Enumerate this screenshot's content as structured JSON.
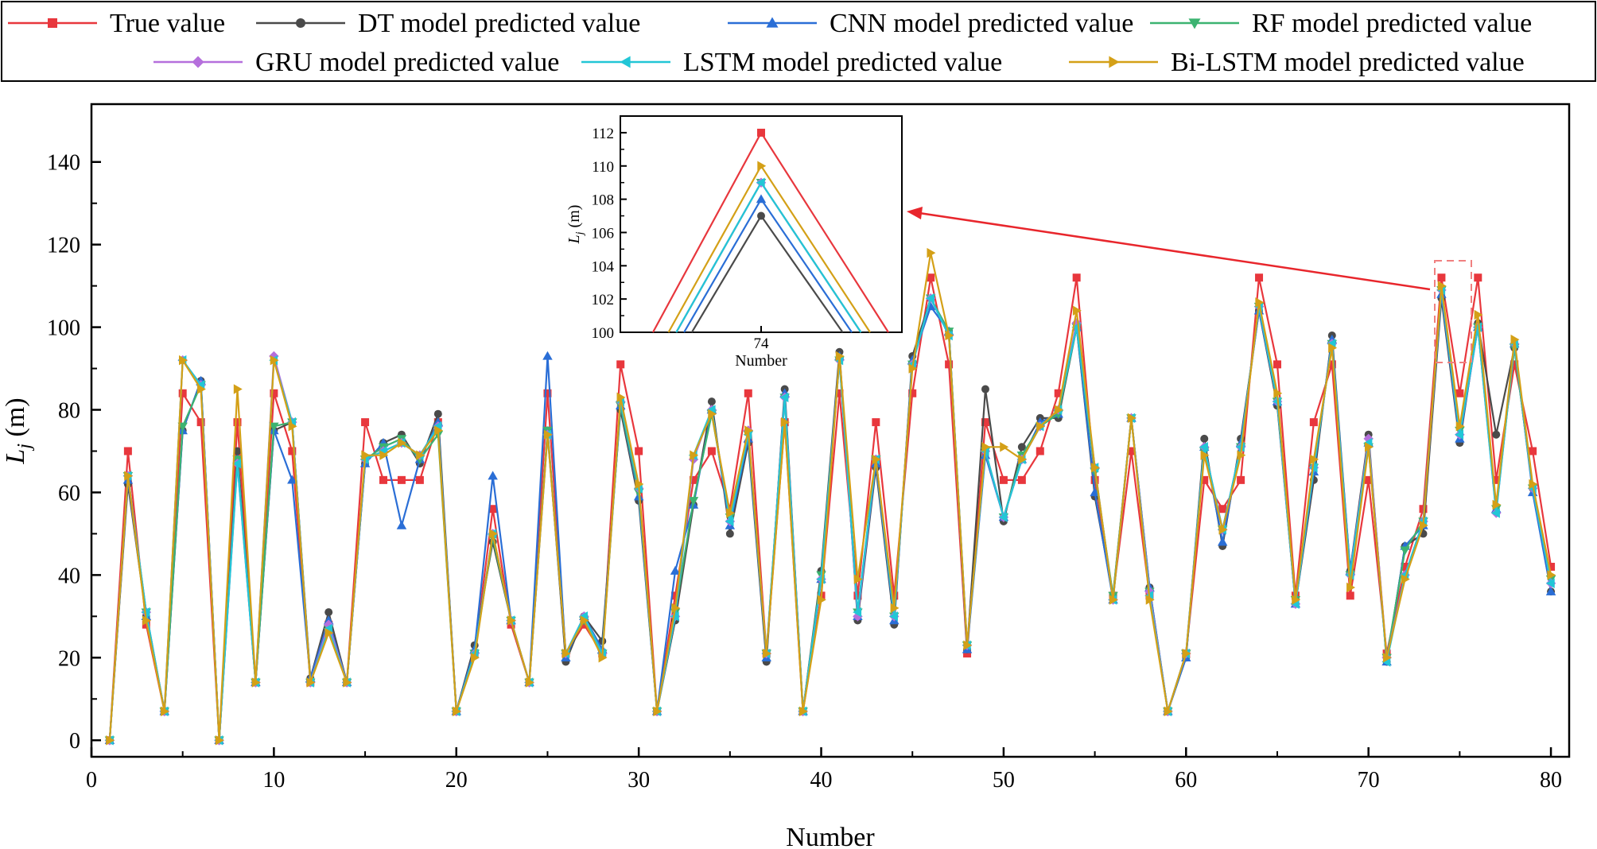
{
  "chart_data": {
    "type": "line",
    "xlabel": "Number",
    "ylabel": "L",
    "ylabel_sub": "j",
    "ylabel_unit": " (m)",
    "xlim": [
      0,
      81
    ],
    "ylim": [
      -4,
      154
    ],
    "xticks": [
      0,
      10,
      20,
      30,
      40,
      50,
      60,
      70,
      80
    ],
    "yticks": [
      0,
      20,
      40,
      60,
      80,
      100,
      120,
      140
    ],
    "x": [
      1,
      2,
      3,
      4,
      5,
      6,
      7,
      8,
      9,
      10,
      11,
      12,
      13,
      14,
      15,
      16,
      17,
      18,
      19,
      20,
      21,
      22,
      23,
      24,
      25,
      26,
      27,
      28,
      29,
      30,
      31,
      32,
      33,
      34,
      35,
      36,
      37,
      38,
      39,
      40,
      41,
      42,
      43,
      44,
      45,
      46,
      47,
      48,
      49,
      50,
      51,
      52,
      53,
      54,
      55,
      56,
      57,
      58,
      59,
      60,
      61,
      62,
      63,
      64,
      65,
      66,
      67,
      68,
      69,
      70,
      71,
      72,
      73,
      74,
      75,
      76,
      77,
      78,
      79,
      80
    ],
    "series": [
      {
        "name": "True value",
        "color": "#e8373d",
        "marker": "square",
        "values": [
          0,
          70,
          28,
          7,
          84,
          77,
          0,
          77,
          14,
          84,
          70,
          14,
          28,
          14,
          77,
          63,
          63,
          63,
          77,
          7,
          21,
          56,
          28,
          14,
          84,
          21,
          28,
          21,
          91,
          70,
          7,
          35,
          63,
          70,
          56,
          84,
          21,
          77,
          7,
          35,
          84,
          35,
          77,
          35,
          84,
          112,
          91,
          21,
          77,
          63,
          63,
          70,
          84,
          112,
          63,
          35,
          70,
          35,
          7,
          21,
          63,
          56,
          63,
          112,
          91,
          35,
          77,
          91,
          35,
          63,
          21,
          42,
          56,
          112,
          84,
          112,
          63,
          91,
          70,
          42
        ]
      },
      {
        "name": "DT model predicted value",
        "color": "#4a4a4a",
        "marker": "circle",
        "values": [
          0,
          62,
          30,
          7,
          75,
          87,
          0,
          70,
          14,
          75,
          77,
          15,
          31,
          14,
          67,
          72,
          74,
          67,
          79,
          7,
          23,
          48,
          29,
          14,
          75,
          19,
          30,
          24,
          80,
          58,
          7,
          29,
          57,
          82,
          50,
          72,
          19,
          85,
          7,
          41,
          94,
          29,
          66,
          28,
          93,
          107,
          99,
          22,
          85,
          53,
          71,
          78,
          78,
          100,
          59,
          35,
          78,
          37,
          7,
          20,
          73,
          47,
          73,
          104,
          81,
          33,
          63,
          98,
          41,
          74,
          19,
          47,
          50,
          107,
          72,
          101,
          74,
          95,
          61,
          36
        ]
      },
      {
        "name": "CNN model predicted value",
        "color": "#2a6ed6",
        "marker": "triangle-up",
        "values": [
          0,
          63,
          30,
          7,
          75,
          87,
          0,
          68,
          14,
          75,
          63,
          15,
          29,
          14,
          67,
          72,
          52,
          68,
          77,
          7,
          22,
          64,
          29,
          14,
          93,
          20,
          30,
          22,
          81,
          59,
          7,
          41,
          57,
          80,
          52,
          73,
          20,
          84,
          7,
          39,
          93,
          30,
          67,
          29,
          92,
          105,
          99,
          22,
          69,
          54,
          68,
          77,
          79,
          100,
          60,
          34,
          78,
          37,
          7,
          20,
          71,
          48,
          72,
          104,
          82,
          33,
          65,
          97,
          41,
          72,
          19,
          47,
          52,
          108,
          73,
          100,
          56,
          96,
          60,
          36
        ]
      },
      {
        "name": "RF model predicted value",
        "color": "#3cb371",
        "marker": "triangle-down",
        "values": [
          0,
          64,
          31,
          7,
          76,
          86,
          0,
          68,
          14,
          76,
          77,
          14,
          27,
          14,
          68,
          71,
          73,
          68,
          74,
          7,
          21,
          49,
          29,
          14,
          75,
          21,
          29,
          21,
          81,
          60,
          7,
          31,
          58,
          79,
          54,
          74,
          21,
          83,
          7,
          40,
          92,
          31,
          68,
          30,
          91,
          107,
          99,
          23,
          70,
          54,
          69,
          76,
          79,
          100,
          65,
          35,
          78,
          36,
          7,
          21,
          70,
          51,
          71,
          105,
          82,
          34,
          66,
          96,
          40,
          71,
          20,
          46,
          53,
          109,
          75,
          100,
          56,
          95,
          61,
          39
        ]
      },
      {
        "name": "GRU model predicted value",
        "color": "#b56fdc",
        "marker": "diamond",
        "values": [
          0,
          64,
          31,
          7,
          92,
          86,
          0,
          67,
          14,
          93,
          77,
          14,
          28,
          14,
          68,
          70,
          72,
          69,
          76,
          7,
          21,
          50,
          29,
          14,
          74,
          21,
          30,
          21,
          82,
          61,
          7,
          30,
          68,
          80,
          53,
          75,
          21,
          83,
          7,
          39,
          92,
          30,
          68,
          30,
          91,
          107,
          98,
          23,
          70,
          54,
          68,
          76,
          80,
          101,
          66,
          34,
          78,
          36,
          7,
          21,
          71,
          51,
          71,
          105,
          82,
          33,
          66,
          96,
          40,
          73,
          20,
          40,
          53,
          109,
          74,
          100,
          55,
          96,
          61,
          38
        ]
      },
      {
        "name": "LSTM model predicted value",
        "color": "#22c6d6",
        "marker": "triangle-left",
        "values": [
          0,
          64,
          31,
          7,
          92,
          86,
          0,
          67,
          14,
          92,
          77,
          14,
          27,
          14,
          68,
          70,
          72,
          69,
          76,
          7,
          21,
          50,
          29,
          14,
          74,
          21,
          30,
          21,
          82,
          61,
          7,
          30,
          69,
          80,
          53,
          74,
          21,
          83,
          7,
          39,
          92,
          31,
          68,
          30,
          91,
          107,
          98,
          23,
          70,
          54,
          68,
          76,
          80,
          100,
          66,
          34,
          78,
          35,
          7,
          21,
          71,
          51,
          71,
          105,
          82,
          33,
          66,
          96,
          40,
          72,
          19,
          40,
          53,
          109,
          74,
          100,
          55,
          96,
          61,
          38
        ]
      },
      {
        "name": "Bi-LSTM model predicted value",
        "color": "#d4a017",
        "marker": "triangle-right",
        "values": [
          0,
          64,
          29,
          7,
          92,
          85,
          0,
          85,
          14,
          92,
          76,
          14,
          26,
          14,
          69,
          69,
          72,
          69,
          75,
          7,
          20,
          50,
          29,
          14,
          74,
          21,
          29,
          20,
          83,
          62,
          7,
          32,
          69,
          79,
          55,
          75,
          21,
          77,
          7,
          34,
          93,
          39,
          68,
          32,
          90,
          118,
          98,
          23,
          71,
          71,
          68,
          76,
          80,
          104,
          66,
          34,
          78,
          34,
          7,
          21,
          69,
          51,
          69,
          106,
          84,
          34,
          68,
          95,
          37,
          71,
          20,
          39,
          52,
          110,
          76,
          103,
          57,
          97,
          62,
          40
        ]
      }
    ],
    "inset": {
      "xlabel": "Number",
      "ylabel": "L",
      "ylabel_sub": "j",
      "ylabel_unit": " (m)",
      "xtick_label": "74",
      "yticks": [
        100,
        102,
        104,
        106,
        108,
        110,
        112
      ],
      "ylim": [
        100,
        113
      ],
      "peaks": [
        112,
        107,
        108,
        109,
        109,
        109,
        110
      ]
    }
  }
}
